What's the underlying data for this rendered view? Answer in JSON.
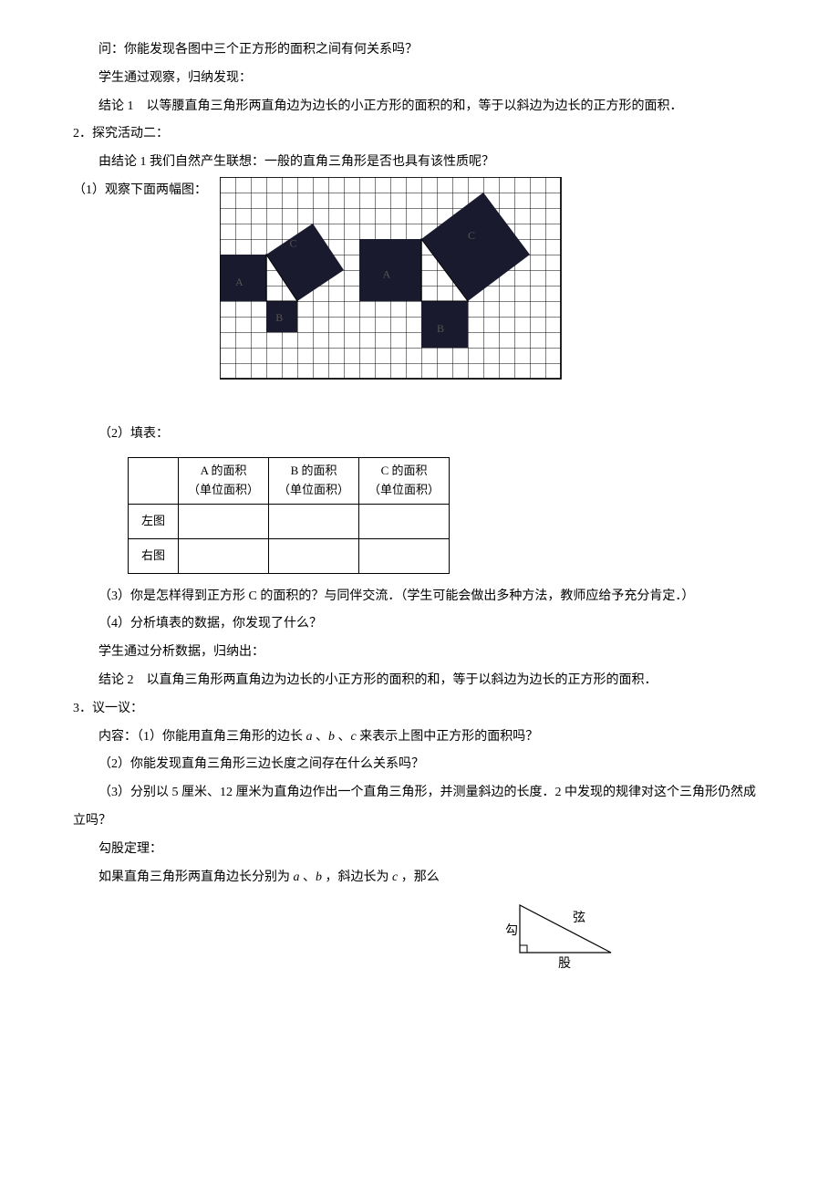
{
  "p1": "问：你能发现各图中三个正方形的面积之间有何关系吗？",
  "p2": "学生通过观察，归纳发现：",
  "p3": "结论 1　以等腰直角三角形两直角边为边长的小正方形的面积的和，等于以斜边为边长的正方形的面积．",
  "section2": "2．探究活动二：",
  "p4": "由结论 1 我们自然产生联想：一般的直角三角形是否也具有该性质呢？",
  "p5_label": "（1）观察下面两幅图：",
  "p6": "（2）填表：",
  "table": {
    "headers": [
      "",
      "A 的面积\n（单位面积）",
      "B 的面积\n（单位面积）",
      "C 的面积\n（单位面积）"
    ],
    "rows": [
      [
        "左图",
        "",
        "",
        ""
      ],
      [
        "右图",
        "",
        "",
        ""
      ]
    ]
  },
  "p7": "（3）你是怎样得到正方形 C 的面积的？与同伴交流．（学生可能会做出多种方法，教师应给予充分肯定．）",
  "p8": "（4）分析填表的数据，你发现了什么？",
  "p9": "学生通过分析数据，归纳出：",
  "p10": "结论 2　以直角三角形两直角边为边长的小正方形的面积的和，等于以斜边为边长的正方形的面积．",
  "section3": "3．议一议：",
  "p11_pre": "内容：（1）你能用直角三角形的边长 ",
  "p11_a": "a",
  "p11_sep1": " 、",
  "p11_b": "b",
  "p11_sep2": " 、",
  "p11_c": "c",
  "p11_post": " 来表示上图中正方形的面积吗？",
  "p12": "（2）你能发现直角三角形三边长度之间存在什么关系吗？",
  "p13": "（3）分别以 5 厘米、12 厘米为直角边作出一个直角三角形，并测量斜边的长度．2 中发现的规律对这个三角形仍然成立吗？",
  "p14": "勾股定理：",
  "p15_pre": "如果直角三角形两直角边长分别为 ",
  "p15_a": "a",
  "p15_sep1": " 、",
  "p15_b": "b",
  "p15_sep2": " ，斜边长为 ",
  "p15_c": "c",
  "p15_post": " ，那么",
  "triangle_labels": {
    "gou": "勾",
    "xian": "弦",
    "gu": "股"
  },
  "grid": {
    "unit": 17,
    "cols": 22,
    "rows": 13,
    "grid_color": "#000",
    "bg_color": "#fff",
    "fill_color": "#1a1a2e",
    "label_color": "#555"
  }
}
